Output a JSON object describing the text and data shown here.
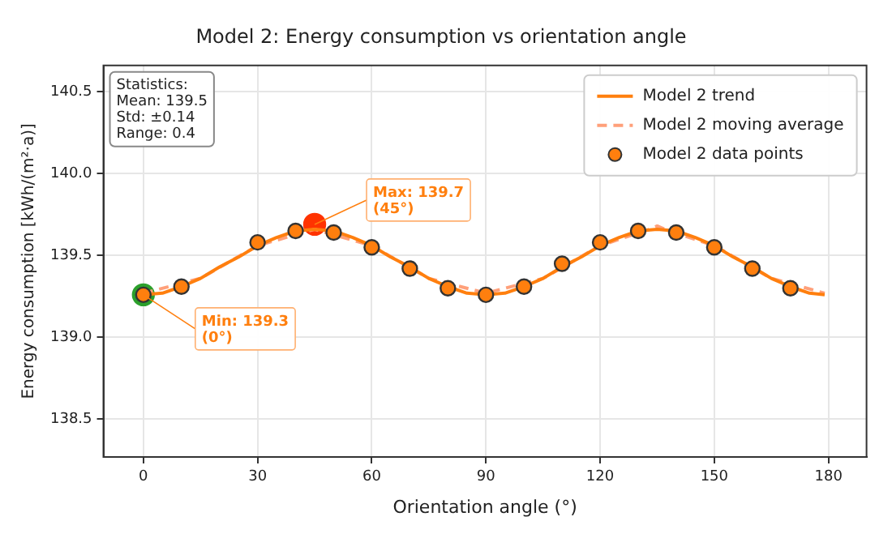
{
  "chart_data": {
    "type": "line",
    "title": "Model 2: Energy consumption vs orientation angle",
    "xlabel": "Orientation angle (°)",
    "ylabel": "Energy consumption [kWh/(m²·a)]",
    "xlim": [
      -10.5,
      190
    ],
    "xticks": [
      0,
      30,
      60,
      90,
      120,
      150,
      180
    ],
    "ylim": [
      138.27,
      140.66
    ],
    "yticks": [
      138.5,
      {
        "value": 139,
        "label": "139.0"
      },
      139.5,
      {
        "value": 140,
        "label": "140.0"
      },
      140.5
    ],
    "grid": true,
    "legend": "top right",
    "series": [
      {
        "name": "Model 2 trend",
        "color": "#ff7f0e",
        "line_style": "solid",
        "marker": "none",
        "x": [
          0,
          5,
          10,
          15,
          20,
          25,
          30,
          35,
          40,
          45,
          50,
          55,
          60,
          65,
          70,
          75,
          80,
          85,
          90,
          95,
          100,
          105,
          110,
          115,
          120,
          125,
          130,
          135,
          140,
          145,
          150,
          155,
          160,
          165,
          170,
          175,
          179
        ],
        "values": [
          139.26,
          139.27,
          139.31,
          139.36,
          139.43,
          139.49,
          139.56,
          139.61,
          139.65,
          139.66,
          139.65,
          139.61,
          139.56,
          139.49,
          139.43,
          139.36,
          139.31,
          139.27,
          139.26,
          139.27,
          139.31,
          139.36,
          139.43,
          139.49,
          139.56,
          139.61,
          139.65,
          139.66,
          139.65,
          139.61,
          139.56,
          139.49,
          139.43,
          139.36,
          139.31,
          139.27,
          139.26
        ]
      },
      {
        "name": "Model 2 moving average",
        "color": "#ffa07a",
        "line_style": "dashed",
        "marker": "none",
        "x": [
          0,
          15,
          30,
          45,
          60,
          75,
          90,
          105,
          120,
          133,
          135,
          137,
          150,
          165,
          179
        ],
        "values": [
          139.27,
          139.36,
          139.56,
          139.66,
          139.56,
          139.36,
          139.27,
          139.36,
          139.56,
          139.66,
          139.68,
          139.66,
          139.56,
          139.36,
          139.27
        ]
      },
      {
        "name": "Model 2 data points",
        "type": "scatter",
        "color": "#ff7f0e",
        "marker": "circle",
        "x": [
          0,
          10,
          30,
          40,
          50,
          60,
          70,
          80,
          90,
          100,
          110,
          120,
          130,
          140,
          150,
          160,
          170
        ],
        "values": [
          139.26,
          139.31,
          139.58,
          139.65,
          139.64,
          139.55,
          139.42,
          139.3,
          139.26,
          139.31,
          139.45,
          139.58,
          139.65,
          139.64,
          139.55,
          139.42,
          139.3
        ]
      },
      {
        "type": "scatter",
        "color": "#ff3300",
        "marker": "circle",
        "x": [
          45
        ],
        "values": [
          139.69
        ]
      },
      {
        "type": "scatter",
        "color": "#2ca02c",
        "marker": "circle",
        "x": [
          0
        ],
        "values": [
          139.26
        ]
      }
    ],
    "annotations": [
      "Statistics:\nMean: 139.5\nStd: ±0.14\nRange: 0.4",
      {
        "text": "Max: 139.7\n(45°)",
        "x": 45,
        "y": 139.69
      },
      {
        "text": "Min: 139.3\n(0°)",
        "x": 0,
        "y": 139.26
      }
    ]
  }
}
